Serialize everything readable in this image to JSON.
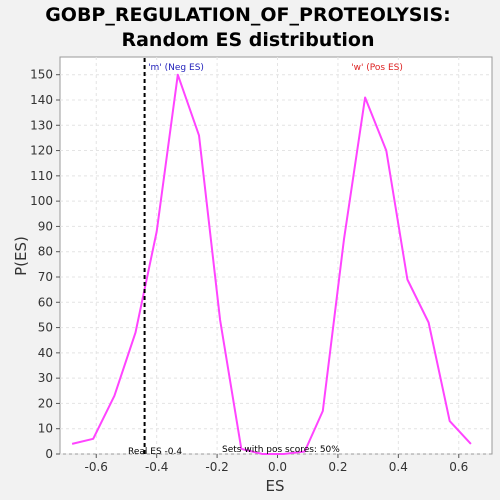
{
  "chart_data": {
    "type": "line",
    "title": [
      "GOBP_REGULATION_OF_PROTEOLYSIS:",
      "Random ES distribution"
    ],
    "xlabel": "ES",
    "ylabel": "P(ES)",
    "xlim": [
      -0.72,
      0.71
    ],
    "ylim": [
      0,
      157
    ],
    "x_ticks": [
      -0.6,
      -0.4,
      -0.2,
      0.0,
      0.2,
      0.4,
      0.6
    ],
    "x_tick_labels": [
      "-0.6",
      "-0.4",
      "-0.2",
      "0.0",
      "0.2",
      "0.4",
      "0.6"
    ],
    "y_ticks": [
      0,
      10,
      20,
      30,
      40,
      50,
      60,
      70,
      80,
      90,
      100,
      110,
      120,
      130,
      140,
      150
    ],
    "y_tick_labels": [
      "0",
      "10",
      "20",
      "30",
      "40",
      "50",
      "60",
      "70",
      "80",
      "90",
      "100",
      "110",
      "120",
      "130",
      "140",
      "150"
    ],
    "grid": true,
    "line_color": "#ff44ff",
    "series": [
      {
        "x": [
          -0.68,
          -0.61,
          -0.54,
          -0.47,
          -0.4,
          -0.33,
          -0.26,
          -0.19,
          -0.12,
          -0.05,
          0.02,
          0.09,
          0.15,
          0.22,
          0.29,
          0.36,
          0.43,
          0.5,
          0.57,
          0.64
        ],
        "y": [
          4,
          6,
          23,
          48,
          88,
          150,
          126,
          53,
          2,
          0,
          0,
          1,
          17,
          85,
          141,
          120,
          69,
          52,
          13,
          4
        ]
      }
    ],
    "real_es_line": {
      "x": -0.44,
      "color": "#000000"
    },
    "annotations": {
      "neg": {
        "text": "'m' (Neg ES)",
        "color": "#2222bb"
      },
      "pos": {
        "text": "'w' (Pos ES)",
        "color": "#dd2222"
      },
      "real_es": {
        "text": "Real ES -0.4"
      },
      "sets_with_pos": {
        "text": "Sets with pos scores: 50%"
      }
    }
  }
}
